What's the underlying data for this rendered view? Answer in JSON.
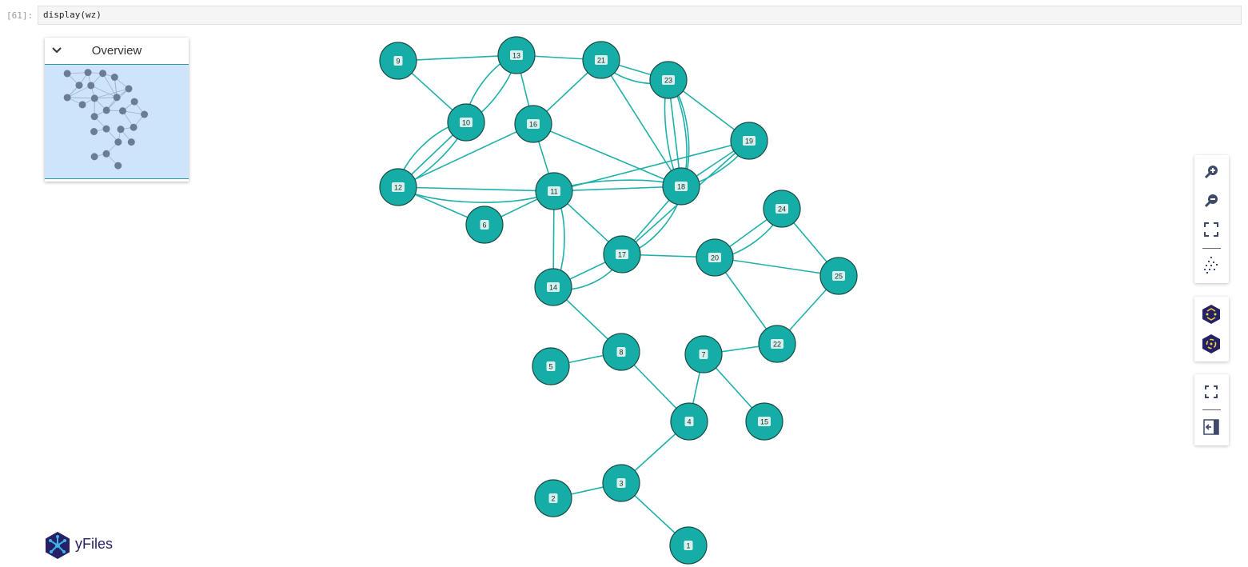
{
  "cell": {
    "prompt": "[61]:",
    "code": "display(wz)"
  },
  "overview": {
    "title": "Overview"
  },
  "logo": {
    "text": "yFiles"
  },
  "toolbar": {
    "zoom_in": "zoom-in-icon",
    "zoom_out": "zoom-out-icon",
    "fit": "fit-content-icon",
    "overview": "overview-toggle-icon",
    "layout_a": "layout-icon",
    "layout_b": "layout-radial-icon",
    "fullscreen": "fullscreen-icon",
    "sidebar": "sidebar-toggle-icon"
  },
  "colors": {
    "node_fill": "#15ada5",
    "node_stroke": "#1b4b47",
    "edge": "#1fb0aa",
    "overview_bg": "#cde4fb",
    "label_bg": "#d6f0ee"
  },
  "graph": {
    "nodes": [
      "1",
      "2",
      "3",
      "4",
      "5",
      "6",
      "7",
      "8",
      "9",
      "10",
      "11",
      "12",
      "13",
      "14",
      "15",
      "16",
      "17",
      "18",
      "19",
      "20",
      "21",
      "22",
      "23",
      "24",
      "25"
    ]
  }
}
